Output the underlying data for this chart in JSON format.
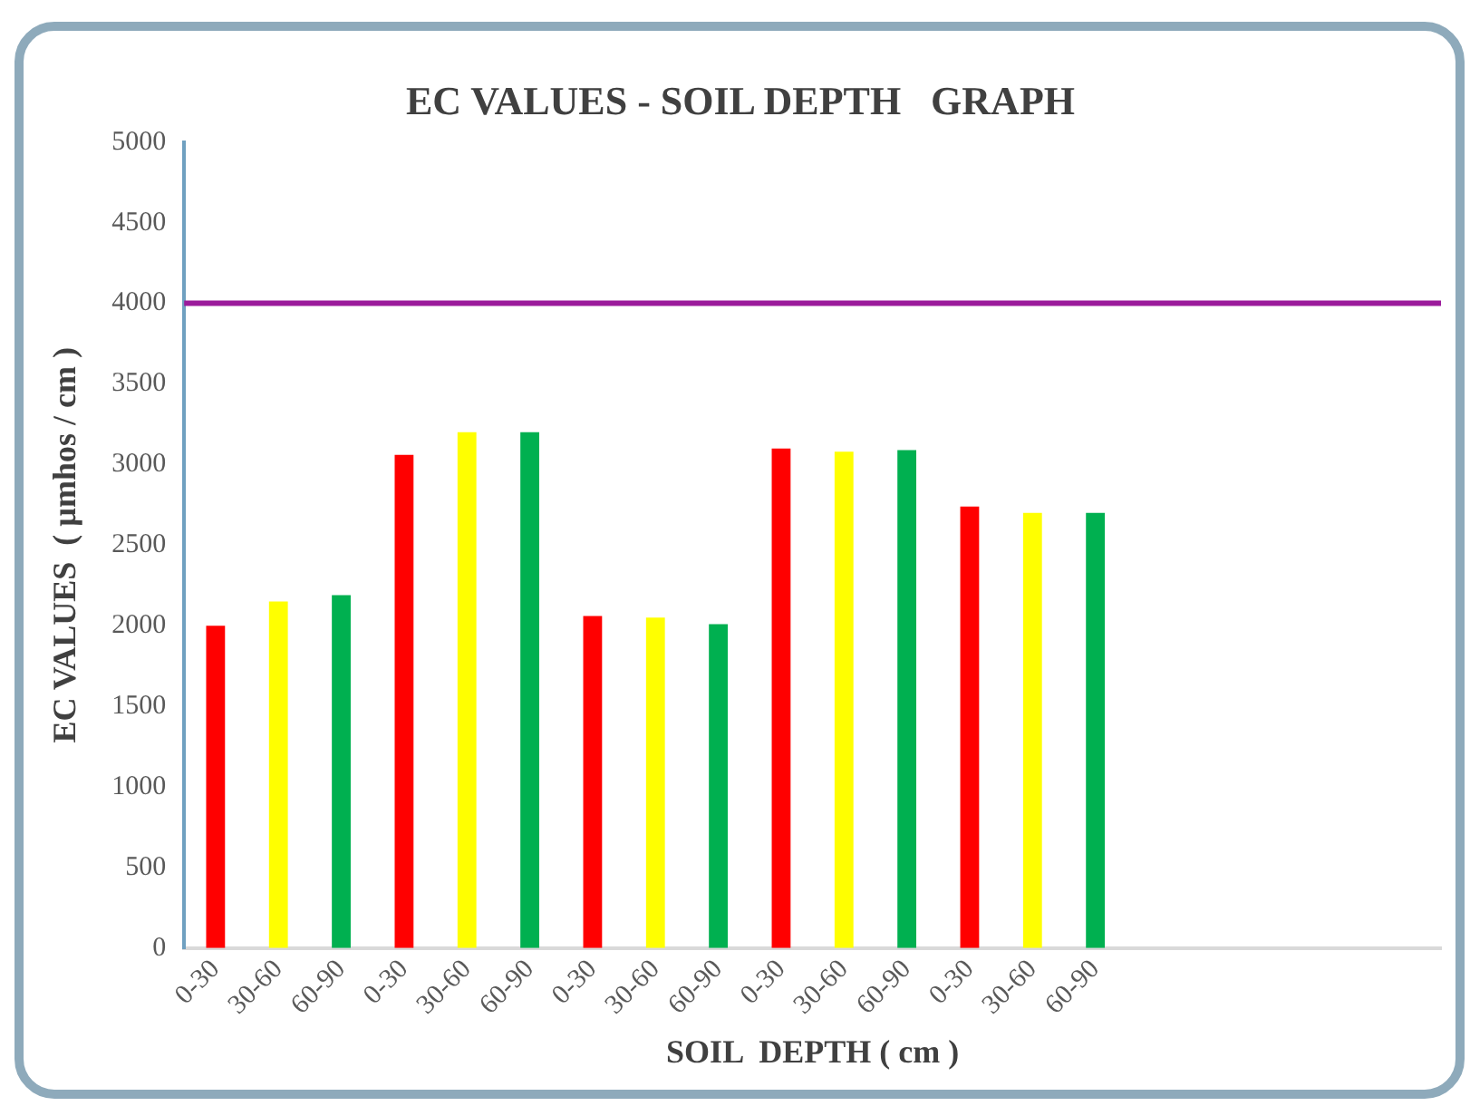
{
  "chart_data": {
    "type": "bar",
    "title": "EC VALUES - SOIL DEPTH   GRAPH",
    "xlabel": "SOIL  DEPTH ( cm )",
    "ylabel": "EC VALUES  ( µmhos / cm )",
    "categories": [
      "0-30",
      "30-60",
      "60-90",
      "0-30",
      "30-60",
      "60-90",
      "0-30",
      "30-60",
      "60-90",
      "0-30",
      "30-60",
      "60-90",
      "0-30",
      "30-60",
      "60-90",
      null,
      null,
      null,
      null,
      null
    ],
    "values": [
      2000,
      2150,
      2190,
      3060,
      3200,
      3200,
      2060,
      2050,
      2010,
      3100,
      3080,
      3090,
      2740,
      2700,
      2700,
      null,
      null,
      null,
      null,
      null
    ],
    "colors": [
      "#ff0000",
      "#ffff00",
      "#00b050",
      "#ff0000",
      "#ffff00",
      "#00b050",
      "#ff0000",
      "#ffff00",
      "#00b050",
      "#ff0000",
      "#ffff00",
      "#00b050",
      "#ff0000",
      "#ffff00",
      "#00b050",
      "#ff0000",
      "#ffff00",
      "#00b050",
      "#ff0000",
      "#ffff00"
    ],
    "ylim": [
      0,
      5000
    ],
    "yticks": [
      0,
      500,
      1000,
      1500,
      2000,
      2500,
      3000,
      3500,
      4000,
      4500,
      5000
    ],
    "ref_lines": [
      {
        "axis": "y",
        "value": 4000,
        "color": "#9b1b9b"
      }
    ],
    "grid": false,
    "legend": false
  }
}
